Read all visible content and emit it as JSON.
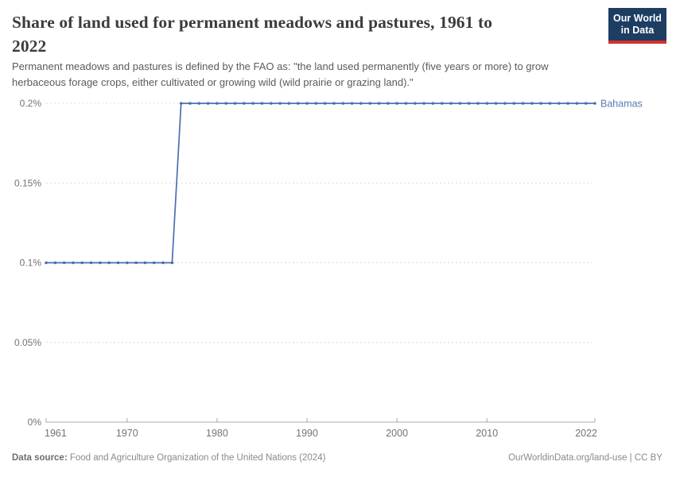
{
  "header": {
    "title_lines": [
      "Share of land used for permanent meadows and pastures, 1961 to",
      "2022"
    ],
    "subtitle_lines": [
      "Permanent meadows and pastures is defined by the FAO as: \"the land used permanently (five years or more) to grow",
      "herbaceous forage crops, either cultivated or growing wild (wild prairie or grazing land).\""
    ],
    "logo": {
      "line1": "Our World",
      "line2": "in Data",
      "bg_color": "#1d3d63",
      "accent_color": "#d0342c"
    }
  },
  "chart_data": {
    "type": "line",
    "title": "Share of land used for permanent meadows and pastures, 1961 to 2022",
    "entity_label": "Bahamas",
    "unit": "%",
    "x": [
      1961,
      1962,
      1963,
      1964,
      1965,
      1966,
      1967,
      1968,
      1969,
      1970,
      1971,
      1972,
      1973,
      1974,
      1975,
      1976,
      1977,
      1978,
      1979,
      1980,
      1981,
      1982,
      1983,
      1984,
      1985,
      1986,
      1987,
      1988,
      1989,
      1990,
      1991,
      1992,
      1993,
      1994,
      1995,
      1996,
      1997,
      1998,
      1999,
      2000,
      2001,
      2002,
      2003,
      2004,
      2005,
      2006,
      2007,
      2008,
      2009,
      2010,
      2011,
      2012,
      2013,
      2014,
      2015,
      2016,
      2017,
      2018,
      2019,
      2020,
      2021,
      2022
    ],
    "y": [
      0.1,
      0.1,
      0.1,
      0.1,
      0.1,
      0.1,
      0.1,
      0.1,
      0.1,
      0.1,
      0.1,
      0.1,
      0.1,
      0.1,
      0.1,
      0.2,
      0.2,
      0.2,
      0.2,
      0.2,
      0.2,
      0.2,
      0.2,
      0.2,
      0.2,
      0.2,
      0.2,
      0.2,
      0.2,
      0.2,
      0.2,
      0.2,
      0.2,
      0.2,
      0.2,
      0.2,
      0.2,
      0.2,
      0.2,
      0.2,
      0.2,
      0.2,
      0.2,
      0.2,
      0.2,
      0.2,
      0.2,
      0.2,
      0.2,
      0.2,
      0.2,
      0.2,
      0.2,
      0.2,
      0.2,
      0.2,
      0.2,
      0.2,
      0.2,
      0.2,
      0.2,
      0.2
    ],
    "ylim": [
      0,
      0.2
    ],
    "yticks": [
      0,
      0.05,
      0.1,
      0.15,
      0.2
    ],
    "ytick_labels": [
      "0%",
      "0.05%",
      "0.1%",
      "0.15%",
      "0.2%"
    ],
    "xticks": [
      1961,
      1970,
      1980,
      1990,
      2000,
      2010,
      2022
    ],
    "xtick_labels": [
      "1961",
      "1970",
      "1980",
      "1990",
      "2000",
      "2010",
      "2022"
    ],
    "grid": true,
    "legend_position": "right-of-line",
    "line_color": "#4c6eb1",
    "entity_label_color": "#5b79b2",
    "grid_color": "#dcdcdc",
    "axis_color": "#a8a8a8",
    "tick_label_color": "#737373"
  },
  "footer": {
    "source_label": "Data source:",
    "source_text": " Food and Agriculture Organization of the United Nations (2024)",
    "credit": "OurWorldinData.org/land-use | CC BY"
  }
}
